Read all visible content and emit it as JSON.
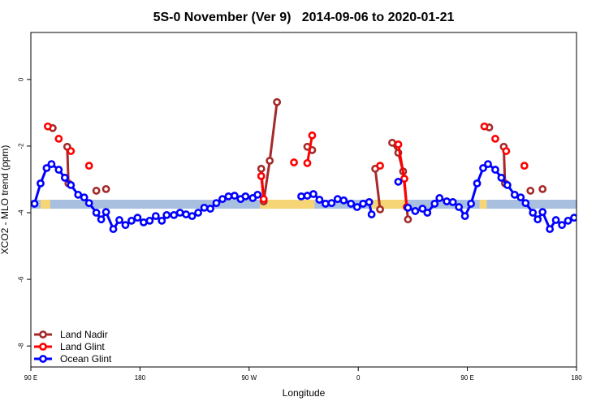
{
  "chart_data": {
    "type": "line",
    "title": "5S-0 November (Ver 9)   2014-09-06 to 2020-01-21",
    "x_label": "Longitude",
    "y_label": "XCO2 - MLO trend (ppm)",
    "xlim": [
      90,
      540
    ],
    "ylim": [
      -8.63,
      1.41
    ],
    "xticks": [
      {
        "value": 90,
        "label": "90 E"
      },
      {
        "value": 180,
        "label": "180"
      },
      {
        "value": 270,
        "label": "90 W"
      },
      {
        "value": 360,
        "label": "0"
      },
      {
        "value": 450,
        "label": "90 E"
      },
      {
        "value": 540,
        "label": "180"
      }
    ],
    "yticks": [
      0,
      -2,
      -4,
      -6,
      -8
    ],
    "legend": "bottomleft",
    "surface_band": {
      "range": [
        -3.61,
        -3.88
      ],
      "colors": [
        "#a8bfe0",
        "#f5d576"
      ],
      "land_spans": [
        [
          279,
          324
        ],
        [
          369,
          399
        ],
        [
          98,
          106
        ],
        [
          460,
          466
        ]
      ]
    },
    "series": [
      {
        "name": "Land Nadir",
        "color": "#a52a2a",
        "x": [
          108,
          null,
          120,
          121,
          null,
          144,
          null,
          152,
          null,
          280,
          282,
          287,
          293,
          null,
          318,
          322,
          null,
          374,
          378,
          null,
          388,
          393,
          397,
          401,
          null,
          468,
          null,
          480,
          481,
          null,
          502,
          null,
          512
        ],
        "values": [
          -1.46,
          null,
          -2.02,
          -3.12,
          null,
          -3.34,
          null,
          -3.29,
          null,
          -2.68,
          -3.66,
          -2.44,
          -0.68,
          null,
          -2.02,
          -2.12,
          null,
          -2.68,
          -3.9,
          null,
          -1.9,
          -2.2,
          -2.76,
          -4.2,
          null,
          -1.44,
          null,
          -2.02,
          -3.12,
          null,
          -3.34,
          null,
          -3.29
        ]
      },
      {
        "name": "Land Glint",
        "color": "#ff0000",
        "x": [
          104,
          null,
          113,
          null,
          123,
          null,
          138,
          null,
          280,
          282,
          null,
          307,
          null,
          318,
          322,
          null,
          378,
          null,
          393,
          398,
          400,
          null,
          464,
          null,
          473,
          null,
          482,
          null,
          497
        ],
        "values": [
          -1.41,
          null,
          -1.78,
          null,
          -2.15,
          null,
          -2.59,
          null,
          -2.9,
          -3.59,
          null,
          -2.49,
          null,
          -2.51,
          -1.68,
          null,
          -2.59,
          null,
          -1.95,
          -2.98,
          -3.83,
          null,
          -1.41,
          null,
          -1.78,
          null,
          -2.15,
          null,
          -2.59
        ]
      },
      {
        "name": "Ocean Glint",
        "color": "#0000ff",
        "x": [
          93,
          98,
          103,
          107,
          113,
          118,
          123,
          129,
          134,
          138,
          144,
          148,
          152,
          158,
          163,
          168,
          173,
          178,
          183,
          188,
          193,
          198,
          202,
          208,
          213,
          218,
          223,
          228,
          233,
          238,
          243,
          248,
          253,
          258,
          263,
          267,
          273,
          277,
          null,
          313,
          318,
          323,
          328,
          333,
          338,
          343,
          348,
          354,
          359,
          364,
          369,
          371,
          null,
          393,
          null,
          401,
          407,
          413,
          417,
          423,
          427,
          433,
          438,
          443,
          448,
          453,
          458,
          463,
          467,
          473,
          478,
          483,
          489,
          494,
          498,
          504,
          508,
          512,
          518,
          523,
          528,
          533,
          538
        ],
        "values": [
          -3.73,
          -3.12,
          -2.66,
          -2.54,
          -2.71,
          -2.95,
          -3.17,
          -3.46,
          -3.54,
          -3.71,
          -4.0,
          -4.2,
          -3.98,
          -4.49,
          -4.22,
          -4.37,
          -4.24,
          -4.15,
          -4.29,
          -4.24,
          -4.1,
          -4.24,
          -4.07,
          -4.07,
          -4.0,
          -4.05,
          -4.1,
          -4.0,
          -3.85,
          -3.88,
          -3.71,
          -3.59,
          -3.51,
          -3.49,
          -3.59,
          -3.51,
          -3.56,
          -3.46,
          null,
          -3.51,
          -3.49,
          -3.44,
          -3.61,
          -3.73,
          -3.71,
          -3.59,
          -3.63,
          -3.73,
          -3.83,
          -3.73,
          -3.68,
          -4.05,
          null,
          -3.07,
          null,
          -3.85,
          -3.95,
          -3.88,
          -4.0,
          -3.73,
          -3.56,
          -3.66,
          -3.68,
          -3.83,
          -4.1,
          -3.73,
          -3.12,
          -2.66,
          -2.54,
          -2.71,
          -2.95,
          -3.17,
          -3.46,
          -3.54,
          -3.71,
          -4.0,
          -4.2,
          -3.98,
          -4.49,
          -4.22,
          -4.37,
          -4.24,
          -4.15
        ]
      }
    ]
  }
}
